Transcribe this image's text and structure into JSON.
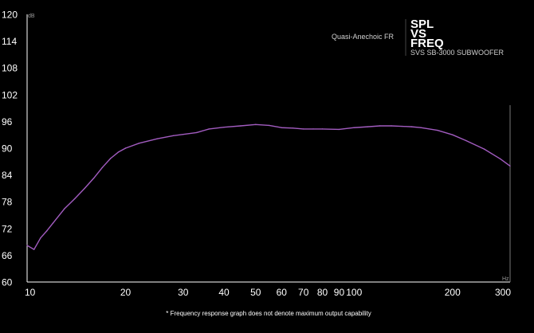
{
  "colors": {
    "background": "#000000",
    "series": "#a25cc0",
    "axis": "#ffffff",
    "marker": "#777777"
  },
  "chart_data": {
    "type": "line",
    "title_lines": [
      "SPL",
      "VS",
      "FREQ"
    ],
    "subtitle": "SVS SB-3000 SUBWOOFER",
    "series_label": "Quasi-Anechoic FR",
    "y_unit": "dB",
    "x_unit": "Hz",
    "x_scale": "log",
    "xlim": [
      10,
      300
    ],
    "ylim": [
      60,
      120
    ],
    "x_ticks": [
      10,
      20,
      30,
      40,
      50,
      60,
      70,
      80,
      90,
      100,
      200,
      300
    ],
    "y_ticks": [
      60,
      66,
      72,
      78,
      84,
      90,
      96,
      102,
      108,
      114,
      120
    ],
    "grid": false,
    "series": [
      {
        "x": [
          10,
          10.5,
          11,
          11.5,
          12,
          13,
          14,
          15,
          16,
          17,
          18,
          19,
          20,
          22,
          25,
          28,
          30,
          33,
          36,
          40,
          45,
          50,
          55,
          60,
          65,
          70,
          75,
          80,
          90,
          100,
          110,
          120,
          130,
          140,
          150,
          160,
          180,
          200,
          220,
          250,
          280,
          300
        ],
        "y": [
          68.2,
          67.3,
          69.9,
          71.5,
          73.2,
          76.4,
          78.7,
          81.0,
          83.3,
          85.7,
          87.7,
          89.1,
          90.0,
          91.1,
          92.1,
          92.8,
          93.1,
          93.5,
          94.3,
          94.7,
          95.0,
          95.3,
          95.1,
          94.6,
          94.5,
          94.3,
          94.3,
          94.3,
          94.2,
          94.6,
          94.8,
          95.0,
          95.0,
          94.9,
          94.8,
          94.6,
          94.0,
          93.0,
          91.7,
          89.8,
          87.6,
          86.0
        ]
      }
    ],
    "footnote": "* Frequency response graph does not denote maximum output capability"
  }
}
